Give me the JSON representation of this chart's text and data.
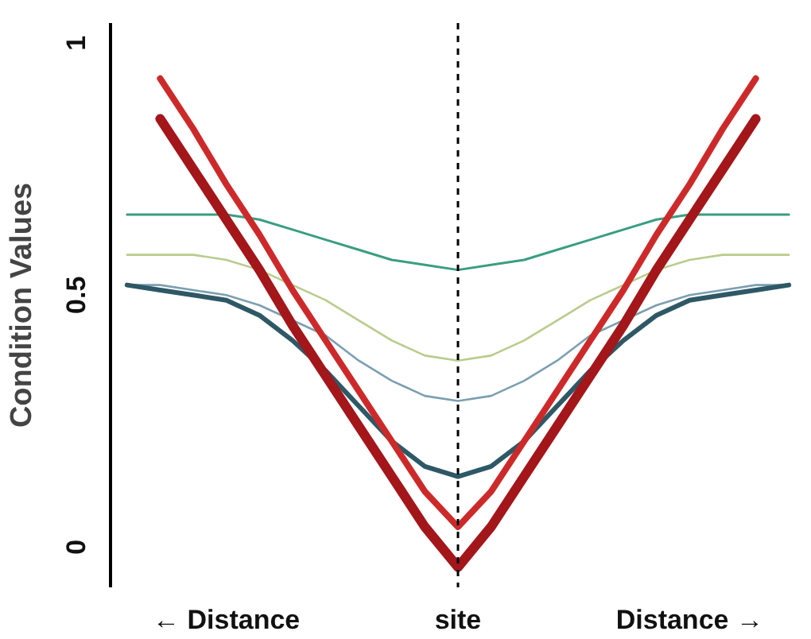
{
  "chart_data": {
    "type": "line",
    "ylabel": "Condition Values",
    "categories": [
      null,
      null,
      null,
      "← Distance",
      null,
      null,
      null,
      null,
      null,
      null,
      "site",
      null,
      null,
      null,
      null,
      null,
      null,
      "Distance →",
      null,
      null,
      null
    ],
    "ylim": [
      -0.08,
      1.04
    ],
    "yticks": [
      0,
      0.5,
      1
    ],
    "grid": false,
    "marker": "none",
    "line_style": "solid",
    "ref_lines": [
      {
        "axis": "x",
        "value": "site",
        "line_style": "dashed",
        "color": "#000000"
      }
    ],
    "series": [
      {
        "color": "#3a9e80",
        "values": [
          0.66,
          0.66,
          0.66,
          0.66,
          0.65,
          0.63,
          0.61,
          0.59,
          0.57,
          0.56,
          0.55,
          0.56,
          0.57,
          0.59,
          0.61,
          0.63,
          0.65,
          0.66,
          0.66,
          0.66,
          0.66
        ]
      },
      {
        "color": "#b8cc8c",
        "values": [
          0.58,
          0.58,
          0.58,
          0.57,
          0.55,
          0.52,
          0.49,
          0.45,
          0.41,
          0.38,
          0.37,
          0.38,
          0.41,
          0.45,
          0.49,
          0.52,
          0.55,
          0.57,
          0.58,
          0.58,
          0.58
        ]
      },
      {
        "color": "#7b9fb2",
        "values": [
          0.52,
          0.52,
          0.51,
          0.5,
          0.48,
          0.45,
          0.42,
          0.37,
          0.33,
          0.3,
          0.29,
          0.3,
          0.33,
          0.37,
          0.42,
          0.45,
          0.48,
          0.5,
          0.51,
          0.52,
          0.52
        ]
      },
      {
        "color": "#2e5866",
        "values": [
          0.52,
          0.51,
          0.5,
          0.49,
          0.46,
          0.41,
          0.35,
          0.28,
          0.21,
          0.16,
          0.14,
          0.16,
          0.21,
          0.28,
          0.35,
          0.41,
          0.46,
          0.49,
          0.5,
          0.51,
          0.52
        ]
      },
      {
        "color": "#cc2a2a",
        "values": [
          null,
          0.93,
          0.83,
          0.72,
          0.62,
          0.51,
          0.41,
          0.31,
          0.21,
          0.11,
          0.04,
          0.11,
          0.21,
          0.31,
          0.41,
          0.51,
          0.62,
          0.72,
          0.83,
          0.93,
          null
        ]
      },
      {
        "color": "#a3161a",
        "values": [
          null,
          0.85,
          0.75,
          0.65,
          0.55,
          0.44,
          0.34,
          0.24,
          0.14,
          0.04,
          -0.04,
          0.04,
          0.14,
          0.24,
          0.34,
          0.44,
          0.55,
          0.65,
          0.75,
          0.85,
          null
        ]
      }
    ]
  }
}
